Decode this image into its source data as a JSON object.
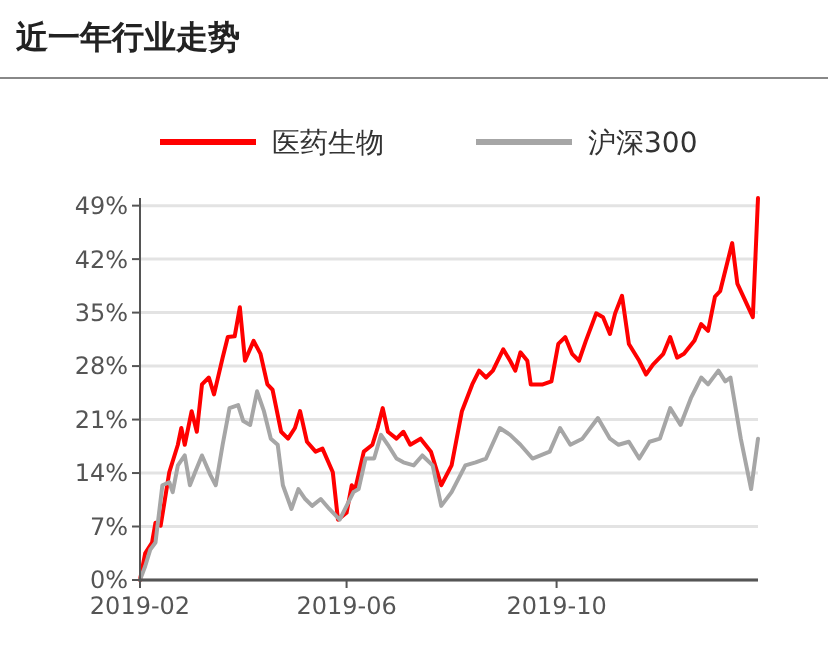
{
  "chart_data": {
    "type": "line",
    "title": "近一年行业走势",
    "grid": "y",
    "legend": "top",
    "line_style": "solid",
    "marker": "none",
    "xlim": [
      "2019-02-01",
      "2020-01-26"
    ],
    "xticks": [
      {
        "value": "2019-02-01",
        "label": "2019-02"
      },
      {
        "value": "2019-06-01",
        "label": "2019-06"
      },
      {
        "value": "2019-10-01",
        "label": "2019-10"
      }
    ],
    "ylim": [
      0,
      50
    ],
    "yticks": [
      {
        "value": 0,
        "label": "0%"
      },
      {
        "value": 7,
        "label": "7%"
      },
      {
        "value": 14,
        "label": "14%"
      },
      {
        "value": 21,
        "label": "21%"
      },
      {
        "value": 28,
        "label": "28%"
      },
      {
        "value": 35,
        "label": "35%"
      },
      {
        "value": 42,
        "label": "42%"
      },
      {
        "value": 49,
        "label": "49%"
      }
    ],
    "series": [
      {
        "name": "医药生物",
        "color": "#ff0000",
        "x": [
          "2019-02-01",
          "2019-02-04",
          "2019-02-08",
          "2019-02-10",
          "2019-02-13",
          "2019-02-18",
          "2019-02-23",
          "2019-02-25",
          "2019-02-27",
          "2019-03-03",
          "2019-03-06",
          "2019-03-09",
          "2019-03-13",
          "2019-03-16",
          "2019-03-21",
          "2019-03-24",
          "2019-03-28",
          "2019-03-31",
          "2019-04-03",
          "2019-04-08",
          "2019-04-12",
          "2019-04-16",
          "2019-04-19",
          "2019-04-24",
          "2019-04-28",
          "2019-05-02",
          "2019-05-05",
          "2019-05-09",
          "2019-05-14",
          "2019-05-18",
          "2019-05-24",
          "2019-05-27",
          "2019-06-01",
          "2019-06-04",
          "2019-06-06",
          "2019-06-11",
          "2019-06-16",
          "2019-06-19",
          "2019-06-22",
          "2019-06-25",
          "2019-06-30",
          "2019-07-04",
          "2019-07-08",
          "2019-07-14",
          "2019-07-20",
          "2019-07-26",
          "2019-08-01",
          "2019-08-07",
          "2019-08-13",
          "2019-08-17",
          "2019-08-21",
          "2019-08-25",
          "2019-08-31",
          "2019-09-04",
          "2019-09-07",
          "2019-09-10",
          "2019-09-14",
          "2019-09-16",
          "2019-09-23",
          "2019-09-28",
          "2019-10-02",
          "2019-10-06",
          "2019-10-10",
          "2019-10-14",
          "2019-10-18",
          "2019-10-24",
          "2019-10-28",
          "2019-11-01",
          "2019-11-04",
          "2019-11-08",
          "2019-11-12",
          "2019-11-18",
          "2019-11-22",
          "2019-11-26",
          "2019-12-02",
          "2019-12-06",
          "2019-12-10",
          "2019-12-14",
          "2019-12-20",
          "2019-12-24",
          "2019-12-28",
          "2020-01-01",
          "2020-01-04",
          "2020-01-11",
          "2020-01-14",
          "2020-01-23",
          "2020-01-26"
        ],
        "values": [
          0,
          3.5,
          4.9,
          7.5,
          7.1,
          14.1,
          17.7,
          19.9,
          17.7,
          22.1,
          19.4,
          25.6,
          26.5,
          24.3,
          29.1,
          31.8,
          31.9,
          35.7,
          28.7,
          31.3,
          29.6,
          25.6,
          24.9,
          19.4,
          18.5,
          19.9,
          22.1,
          18.1,
          16.8,
          17.2,
          14.1,
          7.9,
          8.8,
          12.4,
          11.9,
          16.8,
          17.7,
          19.9,
          22.5,
          19.4,
          18.5,
          19.4,
          17.7,
          18.5,
          16.8,
          12.4,
          15,
          22.1,
          25.6,
          27.4,
          26.5,
          27.4,
          30.2,
          28.7,
          27.4,
          29.8,
          28.7,
          25.6,
          25.6,
          26,
          30.9,
          31.8,
          29.6,
          28.7,
          31.3,
          34.9,
          34.4,
          32.2,
          34.9,
          37.2,
          30.9,
          28.7,
          26.9,
          28.2,
          29.6,
          31.8,
          29.1,
          29.6,
          31.3,
          33.5,
          32.6,
          37.1,
          37.8,
          44.1,
          38.8,
          34.4,
          50
        ]
      },
      {
        "name": "沪深300",
        "color": "#a6a6a6",
        "x": [
          "2019-02-01",
          "2019-02-04",
          "2019-02-07",
          "2019-02-10",
          "2019-02-14",
          "2019-02-18",
          "2019-02-20",
          "2019-02-23",
          "2019-02-27",
          "2019-03-02",
          "2019-03-05",
          "2019-03-09",
          "2019-03-14",
          "2019-03-17",
          "2019-03-21",
          "2019-03-25",
          "2019-03-30",
          "2019-04-02",
          "2019-04-06",
          "2019-04-10",
          "2019-04-14",
          "2019-04-18",
          "2019-04-22",
          "2019-04-25",
          "2019-04-30",
          "2019-05-04",
          "2019-05-08",
          "2019-05-12",
          "2019-05-17",
          "2019-05-22",
          "2019-05-28",
          "2019-06-01",
          "2019-06-05",
          "2019-06-08",
          "2019-06-12",
          "2019-06-17",
          "2019-06-21",
          "2019-06-25",
          "2019-06-30",
          "2019-07-04",
          "2019-07-10",
          "2019-07-15",
          "2019-07-21",
          "2019-07-26",
          "2019-08-01",
          "2019-08-09",
          "2019-08-15",
          "2019-08-21",
          "2019-08-29",
          "2019-09-04",
          "2019-09-10",
          "2019-09-17",
          "2019-09-27",
          "2019-10-03",
          "2019-10-09",
          "2019-10-16",
          "2019-10-25",
          "2019-11-01",
          "2019-11-06",
          "2019-11-12",
          "2019-11-18",
          "2019-11-24",
          "2019-11-30",
          "2019-12-06",
          "2019-12-12",
          "2019-12-18",
          "2019-12-24",
          "2019-12-28",
          "2020-01-03",
          "2020-01-07",
          "2020-01-10",
          "2020-01-16",
          "2020-01-22",
          "2020-01-26"
        ],
        "values": [
          0,
          1.8,
          4,
          4.9,
          12.4,
          12.8,
          11.5,
          15,
          16.3,
          12.4,
          14.1,
          16.3,
          13.7,
          12.4,
          17.7,
          22.5,
          22.9,
          20.8,
          20.3,
          24.7,
          22.1,
          18.5,
          17.7,
          12.4,
          9.3,
          11.9,
          10.6,
          9.7,
          10.6,
          9.3,
          7.9,
          9.7,
          11.5,
          11.9,
          15.9,
          15.9,
          19,
          17.7,
          15.9,
          15.4,
          15,
          16.3,
          15,
          9.7,
          11.5,
          15,
          15.4,
          15.9,
          19.9,
          19,
          17.7,
          15.9,
          16.8,
          19.9,
          17.7,
          18.5,
          21.2,
          18.5,
          17.7,
          18.1,
          15.9,
          18.1,
          18.5,
          22.5,
          20.3,
          23.8,
          26.5,
          25.6,
          27.4,
          26,
          26.5,
          18.5,
          11.9,
          18.5
        ]
      }
    ]
  }
}
